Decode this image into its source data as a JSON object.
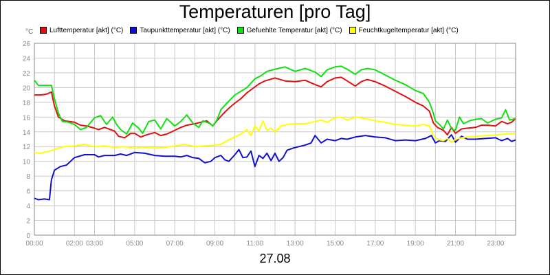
{
  "title": "Temperaturen [pro Tag]",
  "unit": "°C",
  "footer": "27.08",
  "chart_data": {
    "type": "line",
    "title": "Temperaturen [pro Tag]",
    "xlabel": "27.08",
    "ylabel": "°C",
    "ylim": [
      0,
      26
    ],
    "yticks": [
      0,
      2,
      4,
      6,
      8,
      10,
      12,
      14,
      16,
      18,
      20,
      22,
      24,
      26
    ],
    "xlim": [
      0,
      24
    ],
    "xticks": [
      {
        "v": 0,
        "label": "00:00"
      },
      {
        "v": 2,
        "label": "02:00"
      },
      {
        "v": 3,
        "label": "03:00"
      },
      {
        "v": 5,
        "label": "05:00"
      },
      {
        "v": 7,
        "label": "07:00"
      },
      {
        "v": 9,
        "label": "09:00"
      },
      {
        "v": 11,
        "label": "11:00"
      },
      {
        "v": 13,
        "label": "13:00"
      },
      {
        "v": 15,
        "label": "15:00"
      },
      {
        "v": 17,
        "label": "17:00"
      },
      {
        "v": 19,
        "label": "19:00"
      },
      {
        "v": 21,
        "label": "21:00"
      },
      {
        "v": 23,
        "label": "23:00"
      }
    ],
    "grid": true,
    "legend_position": "top",
    "series": [
      {
        "name": "Lufttemperatur [akt] (°C)",
        "color": "#e01010",
        "points": [
          [
            0,
            19
          ],
          [
            0.3,
            19
          ],
          [
            0.6,
            19.1
          ],
          [
            0.85,
            19.4
          ],
          [
            1,
            17.5
          ],
          [
            1.2,
            16
          ],
          [
            1.5,
            15.5
          ],
          [
            2,
            15.3
          ],
          [
            2.3,
            14.9
          ],
          [
            2.6,
            14.8
          ],
          [
            3,
            14.5
          ],
          [
            3.2,
            14.3
          ],
          [
            3.5,
            14.6
          ],
          [
            3.8,
            14.3
          ],
          [
            4,
            14.1
          ],
          [
            4.2,
            13.4
          ],
          [
            4.5,
            13.2
          ],
          [
            4.8,
            13.8
          ],
          [
            5,
            13.8
          ],
          [
            5.3,
            13.3
          ],
          [
            5.6,
            13.6
          ],
          [
            6,
            13.9
          ],
          [
            6.3,
            13.5
          ],
          [
            6.6,
            13.7
          ],
          [
            7,
            14.2
          ],
          [
            7.3,
            14.6
          ],
          [
            7.6,
            14.9
          ],
          [
            8,
            15.1
          ],
          [
            8.3,
            15.3
          ],
          [
            8.6,
            15.5
          ],
          [
            8.9,
            14.8
          ],
          [
            9.1,
            15.5
          ],
          [
            9.4,
            16.4
          ],
          [
            9.7,
            17.2
          ],
          [
            10,
            17.9
          ],
          [
            10.3,
            18.5
          ],
          [
            10.6,
            19.3
          ],
          [
            10.9,
            19.9
          ],
          [
            11.2,
            20.5
          ],
          [
            11.5,
            20.9
          ],
          [
            12,
            21.3
          ],
          [
            12.5,
            20.9
          ],
          [
            13,
            20.8
          ],
          [
            13.5,
            21
          ],
          [
            14,
            20.4
          ],
          [
            14.3,
            20.1
          ],
          [
            14.6,
            20.8
          ],
          [
            15,
            21.3
          ],
          [
            15.3,
            21.4
          ],
          [
            15.6,
            20.9
          ],
          [
            16,
            20.2
          ],
          [
            16.3,
            20.8
          ],
          [
            16.6,
            21.1
          ],
          [
            17,
            20.8
          ],
          [
            17.5,
            20.2
          ],
          [
            18,
            19.5
          ],
          [
            18.5,
            18.8
          ],
          [
            19,
            18
          ],
          [
            19.4,
            17.5
          ],
          [
            19.7,
            16.8
          ],
          [
            19.9,
            15.2
          ],
          [
            20.1,
            14.6
          ],
          [
            20.4,
            14.2
          ],
          [
            20.6,
            13.6
          ],
          [
            20.8,
            14.6
          ],
          [
            21,
            13.8
          ],
          [
            21.3,
            14.4
          ],
          [
            21.6,
            14.5
          ],
          [
            22,
            14.6
          ],
          [
            22.3,
            14.9
          ],
          [
            22.6,
            14.9
          ],
          [
            23,
            14.8
          ],
          [
            23.3,
            15.4
          ],
          [
            23.6,
            15.1
          ],
          [
            23.8,
            15.3
          ],
          [
            24,
            15.8
          ]
        ]
      },
      {
        "name": "Taupunkttemperatur [akt] (°C)",
        "color": "#1010d0",
        "points": [
          [
            0,
            5
          ],
          [
            0.2,
            4.8
          ],
          [
            0.5,
            4.9
          ],
          [
            0.75,
            4.8
          ],
          [
            0.85,
            7.5
          ],
          [
            1,
            8.8
          ],
          [
            1.3,
            9.3
          ],
          [
            1.6,
            9.5
          ],
          [
            2,
            10.5
          ],
          [
            2.5,
            10.9
          ],
          [
            3,
            10.9
          ],
          [
            3.2,
            10.6
          ],
          [
            3.5,
            10.8
          ],
          [
            4,
            10.8
          ],
          [
            4.3,
            11
          ],
          [
            4.6,
            10.8
          ],
          [
            5,
            11.2
          ],
          [
            5.5,
            11.1
          ],
          [
            6,
            10.8
          ],
          [
            6.5,
            10.7
          ],
          [
            7,
            10.7
          ],
          [
            7.3,
            10.6
          ],
          [
            7.6,
            10.8
          ],
          [
            7.9,
            10.5
          ],
          [
            8.2,
            10.4
          ],
          [
            8.5,
            9.8
          ],
          [
            8.8,
            10
          ],
          [
            9,
            10.5
          ],
          [
            9.3,
            10.8
          ],
          [
            9.5,
            10.2
          ],
          [
            9.7,
            10
          ],
          [
            10,
            10.9
          ],
          [
            10.2,
            11.6
          ],
          [
            10.4,
            10.5
          ],
          [
            10.6,
            10.6
          ],
          [
            10.8,
            11.4
          ],
          [
            11,
            9.3
          ],
          [
            11.2,
            10.8
          ],
          [
            11.4,
            10.4
          ],
          [
            11.6,
            11.1
          ],
          [
            11.8,
            10.1
          ],
          [
            12,
            11.1
          ],
          [
            12.2,
            10
          ],
          [
            12.4,
            10.5
          ],
          [
            12.6,
            11.5
          ],
          [
            12.9,
            11.8
          ],
          [
            13.2,
            12
          ],
          [
            13.5,
            12.2
          ],
          [
            13.8,
            12.5
          ],
          [
            14,
            13.5
          ],
          [
            14.3,
            12.5
          ],
          [
            14.6,
            13
          ],
          [
            15,
            12.8
          ],
          [
            15.3,
            13.1
          ],
          [
            15.6,
            13
          ],
          [
            16,
            13.3
          ],
          [
            16.5,
            13.5
          ],
          [
            17,
            13.3
          ],
          [
            17.5,
            13.2
          ],
          [
            18,
            12.8
          ],
          [
            18.5,
            12.9
          ],
          [
            19,
            12.8
          ],
          [
            19.5,
            13.1
          ],
          [
            19.8,
            13.5
          ],
          [
            20,
            12.5
          ],
          [
            20.2,
            12.8
          ],
          [
            20.5,
            12.7
          ],
          [
            20.8,
            13.6
          ],
          [
            21,
            12.6
          ],
          [
            21.3,
            13.4
          ],
          [
            21.6,
            13
          ],
          [
            22,
            13
          ],
          [
            22.5,
            13.1
          ],
          [
            23,
            13.2
          ],
          [
            23.3,
            12.8
          ],
          [
            23.6,
            13.1
          ],
          [
            23.8,
            12.7
          ],
          [
            24,
            12.9
          ]
        ]
      },
      {
        "name": "Gefuehlte Temperatur [akt] (°C)",
        "color": "#10e010",
        "points": [
          [
            0,
            21
          ],
          [
            0.2,
            20.3
          ],
          [
            0.5,
            20.3
          ],
          [
            0.85,
            20.3
          ],
          [
            1,
            18.5
          ],
          [
            1.2,
            16.5
          ],
          [
            1.4,
            15.4
          ],
          [
            1.7,
            15.3
          ],
          [
            2,
            15
          ],
          [
            2.3,
            14.3
          ],
          [
            2.6,
            14.6
          ],
          [
            3,
            15.9
          ],
          [
            3.3,
            16.2
          ],
          [
            3.6,
            15
          ],
          [
            3.9,
            16
          ],
          [
            4.1,
            15
          ],
          [
            4.3,
            14.3
          ],
          [
            4.6,
            13.7
          ],
          [
            4.9,
            15.2
          ],
          [
            5.2,
            14.5
          ],
          [
            5.4,
            13.8
          ],
          [
            5.7,
            15.4
          ],
          [
            6,
            15.6
          ],
          [
            6.3,
            14.4
          ],
          [
            6.6,
            15.8
          ],
          [
            7,
            14.8
          ],
          [
            7.3,
            15.4
          ],
          [
            7.6,
            16.3
          ],
          [
            7.9,
            15.2
          ],
          [
            8.2,
            14.6
          ],
          [
            8.4,
            15.5
          ],
          [
            8.7,
            15.2
          ],
          [
            8.9,
            14.8
          ],
          [
            9.1,
            15.6
          ],
          [
            9.3,
            17
          ],
          [
            9.6,
            17.9
          ],
          [
            10,
            19
          ],
          [
            10.3,
            19.5
          ],
          [
            10.6,
            20
          ],
          [
            11,
            21.2
          ],
          [
            11.3,
            21.6
          ],
          [
            11.6,
            22.2
          ],
          [
            12,
            22.5
          ],
          [
            12.5,
            22.8
          ],
          [
            13,
            22.2
          ],
          [
            13.5,
            22.6
          ],
          [
            14,
            22.1
          ],
          [
            14.3,
            21.5
          ],
          [
            14.6,
            22.4
          ],
          [
            15,
            22.8
          ],
          [
            15.3,
            22.9
          ],
          [
            15.6,
            22.5
          ],
          [
            16,
            21.8
          ],
          [
            16.3,
            22.4
          ],
          [
            16.6,
            22.6
          ],
          [
            17,
            22.4
          ],
          [
            17.5,
            21.7
          ],
          [
            18,
            21
          ],
          [
            18.5,
            20.4
          ],
          [
            19,
            19.6
          ],
          [
            19.4,
            19.2
          ],
          [
            19.7,
            18
          ],
          [
            19.9,
            16.5
          ],
          [
            20,
            15.5
          ],
          [
            20.2,
            15
          ],
          [
            20.4,
            14.4
          ],
          [
            20.6,
            15.6
          ],
          [
            20.8,
            14.4
          ],
          [
            21,
            14.2
          ],
          [
            21.2,
            16
          ],
          [
            21.4,
            15.1
          ],
          [
            21.7,
            15.5
          ],
          [
            22,
            15.7
          ],
          [
            22.3,
            15.8
          ],
          [
            22.6,
            15.2
          ],
          [
            23,
            15.7
          ],
          [
            23.3,
            15.9
          ],
          [
            23.5,
            17
          ],
          [
            23.7,
            15.6
          ],
          [
            24,
            15.8
          ]
        ]
      },
      {
        "name": "Feuchtkugeltemperatur [akt] (°C)",
        "color": "#ffff00",
        "points": [
          [
            0,
            11.2
          ],
          [
            0.3,
            11.1
          ],
          [
            0.6,
            11.3
          ],
          [
            0.9,
            11.5
          ],
          [
            1.2,
            11.8
          ],
          [
            1.5,
            12
          ],
          [
            2,
            12.1
          ],
          [
            2.5,
            12.3
          ],
          [
            3,
            12
          ],
          [
            3.5,
            12.1
          ],
          [
            4,
            11.9
          ],
          [
            4.5,
            12
          ],
          [
            5,
            11.8
          ],
          [
            5.5,
            11.9
          ],
          [
            6,
            11.8
          ],
          [
            6.5,
            11.9
          ],
          [
            7,
            12.1
          ],
          [
            7.5,
            12.3
          ],
          [
            8,
            12
          ],
          [
            8.5,
            12.1
          ],
          [
            9,
            12.2
          ],
          [
            9.3,
            12.3
          ],
          [
            9.6,
            12.8
          ],
          [
            10,
            13.3
          ],
          [
            10.3,
            13.7
          ],
          [
            10.6,
            14.3
          ],
          [
            10.8,
            13.5
          ],
          [
            11,
            14.8
          ],
          [
            11.2,
            14.1
          ],
          [
            11.4,
            15.5
          ],
          [
            11.6,
            14.2
          ],
          [
            11.8,
            14.5
          ],
          [
            12,
            14
          ],
          [
            12.3,
            14.8
          ],
          [
            12.6,
            15
          ],
          [
            13,
            15.1
          ],
          [
            13.5,
            15.1
          ],
          [
            14,
            15.4
          ],
          [
            14.3,
            15.6
          ],
          [
            14.6,
            15.3
          ],
          [
            15,
            15.9
          ],
          [
            15.3,
            16
          ],
          [
            15.6,
            15.6
          ],
          [
            16,
            16
          ],
          [
            16.5,
            15.8
          ],
          [
            17,
            15.5
          ],
          [
            17.5,
            15.3
          ],
          [
            18,
            15
          ],
          [
            18.5,
            14.9
          ],
          [
            19,
            14.8
          ],
          [
            19.4,
            15
          ],
          [
            19.7,
            14.8
          ],
          [
            19.9,
            13.5
          ],
          [
            20.1,
            13
          ],
          [
            20.4,
            12.8
          ],
          [
            20.6,
            13.1
          ],
          [
            20.8,
            12.6
          ],
          [
            21,
            13
          ],
          [
            21.3,
            13.2
          ],
          [
            21.6,
            13.3
          ],
          [
            22,
            13.4
          ],
          [
            22.5,
            13.5
          ],
          [
            23,
            13.6
          ],
          [
            23.5,
            13.7
          ],
          [
            24,
            13.8
          ]
        ]
      }
    ]
  }
}
